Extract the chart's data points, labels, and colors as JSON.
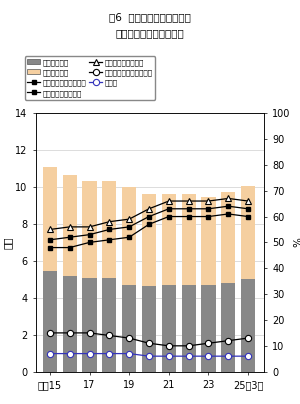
{
  "title1": "図6  高等学校の卒業者数、",
  "title2": "進学率及び就職率の推移",
  "ylabel_left": "万人",
  "ylabel_right": "%",
  "years": [
    15,
    16,
    17,
    18,
    19,
    20,
    21,
    22,
    23,
    24,
    25
  ],
  "xtick_labels": [
    "平成15",
    "17",
    "19",
    "21",
    "23",
    "25年3月"
  ],
  "xtick_positions": [
    15,
    17,
    19,
    21,
    23,
    25
  ],
  "bar_male": [
    5.43,
    5.2,
    5.05,
    5.05,
    4.72,
    4.65,
    4.68,
    4.7,
    4.7,
    4.78,
    5.0
  ],
  "bar_female": [
    5.65,
    5.43,
    5.28,
    5.26,
    5.3,
    4.95,
    4.92,
    4.93,
    4.78,
    4.93,
    5.05
  ],
  "line_total": [
    51,
    52,
    53,
    55,
    56,
    60,
    63,
    63,
    63,
    64,
    63
  ],
  "line_male": [
    48,
    48,
    50,
    51,
    52,
    57,
    60,
    60,
    60,
    61,
    60
  ],
  "line_female": [
    55,
    56,
    56,
    58,
    59,
    63,
    66,
    66,
    66,
    67,
    66
  ],
  "line_senmon": [
    15,
    15,
    15,
    14,
    13,
    11,
    10,
    10,
    11,
    12,
    13
  ],
  "line_shushoku": [
    7,
    7,
    7,
    7,
    7,
    6,
    6,
    6,
    6,
    6,
    6
  ],
  "bar_male_color": "#888888",
  "bar_female_color": "#f5cfa0",
  "line_shushoku_color": "#3333bb",
  "ylim_left": [
    0,
    14
  ],
  "ylim_right": [
    0,
    100
  ],
  "yticks_left": [
    0,
    2,
    4,
    6,
    8,
    10,
    12,
    14
  ],
  "yticks_right": [
    0,
    10,
    20,
    30,
    40,
    50,
    60,
    70,
    80,
    90,
    100
  ],
  "bar_width": 0.72,
  "xlim": [
    14.3,
    25.8
  ]
}
